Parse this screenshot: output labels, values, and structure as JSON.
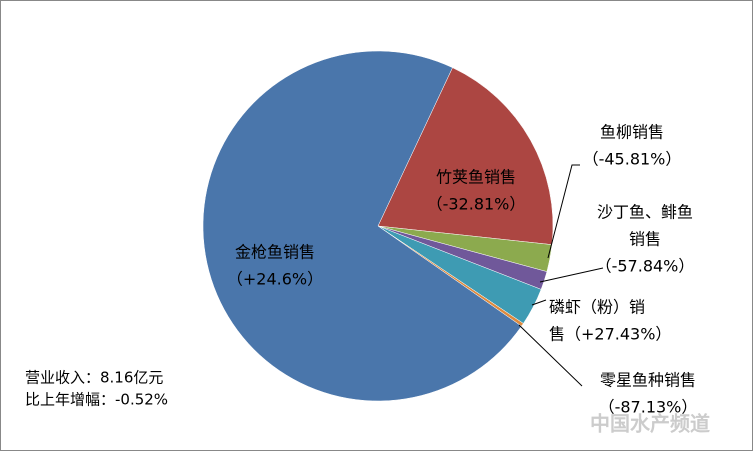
{
  "chart_data": {
    "type": "pie",
    "labels": [
      [
        "竹荚鱼销售",
        "（-32.81%）"
      ],
      [
        "鱼柳销售",
        "（-45.81%）"
      ],
      [
        "沙丁鱼、鲱鱼",
        "销售",
        "（-57.84%）"
      ],
      [
        "磷虾（粉）销",
        "售（+27.43%）"
      ],
      [
        "零星鱼种销售",
        "（-87.13%）"
      ],
      [
        "金枪鱼销售",
        "（+24.6%）"
      ]
    ],
    "values": [
      19.7,
      2.5,
      1.7,
      3.5,
      0.3,
      72.3
    ],
    "colors": [
      "#ac4642",
      "#8caa4e",
      "#70589a",
      "#3e9bb3",
      "#dd8a3e",
      "#4a76ab"
    ],
    "note": [
      "营业收入：8.16亿元",
      "比上年增幅：-0.52%"
    ],
    "watermark": "中国水产频道"
  }
}
